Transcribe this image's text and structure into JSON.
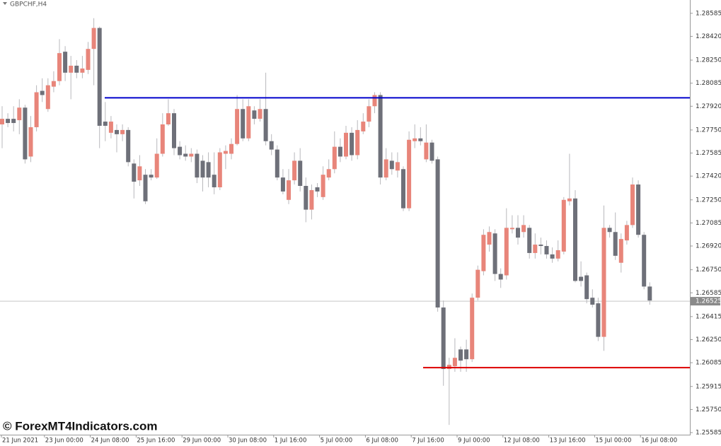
{
  "chart_data": {
    "type": "candlestick",
    "title": "GBPCHF,H4",
    "watermark": "© ForexMT4Indicators.com",
    "up_color": "#e8857a",
    "down_color": "#6e7079",
    "wick_color": "#b8b8bc",
    "ylim": [
      1.2557,
      1.2868
    ],
    "yticks": [
      1.28585,
      {
        "value": 1.2842,
        "label": "1.28420"
      },
      {
        "value": 1.2825,
        "label": "1.28250"
      },
      1.28085,
      {
        "value": 1.2792,
        "label": "1.27920"
      },
      {
        "value": 1.2775,
        "label": "1.27750"
      },
      1.27585,
      {
        "value": 1.2742,
        "label": "1.27420"
      },
      {
        "value": 1.2725,
        "label": "1.27250"
      },
      1.27085,
      {
        "value": 1.2692,
        "label": "1.26920"
      },
      {
        "value": 1.2675,
        "label": "1.26750"
      },
      1.26585,
      1.26415,
      {
        "value": 1.2625,
        "label": "1.26250"
      },
      1.26085,
      1.25915,
      {
        "value": 1.2575,
        "label": "1.25750"
      },
      1.25585
    ],
    "current_price": 1.26525,
    "levels": [
      {
        "value": 1.2798,
        "color": "#0000cc"
      },
      {
        "value": 1.2605,
        "color": "#dd0000"
      }
    ],
    "categories": [
      "21 Jun 2021",
      null,
      null,
      null,
      null,
      null,
      null,
      null,
      "23 Jun 00:00",
      null,
      null,
      null,
      null,
      null,
      null,
      null,
      "24 Jun 08:00",
      null,
      null,
      null,
      null,
      null,
      null,
      null,
      "25 Jun 16:00",
      null,
      null,
      null,
      null,
      null,
      null,
      null,
      "29 Jun 00:00",
      null,
      null,
      null,
      null,
      null,
      null,
      null,
      "30 Jun 08:00",
      null,
      null,
      null,
      null,
      null,
      null,
      null,
      "1 Jul 16:00",
      null,
      null,
      null,
      null,
      null,
      null,
      null,
      "5 Jul 00:00",
      null,
      null,
      null,
      null,
      null,
      null,
      null,
      "6 Jul 08:00",
      null,
      null,
      null,
      null,
      null,
      null,
      null,
      "7 Jul 16:00",
      null,
      null,
      null,
      null,
      null,
      null,
      null,
      "9 Jul 00:00",
      null,
      null,
      null,
      null,
      null,
      null,
      null,
      "12 Jul 08:00",
      null,
      null,
      null,
      null,
      null,
      null,
      null,
      "13 Jul 16:00",
      null,
      null,
      null,
      null,
      null,
      null,
      null,
      "15 Jul 00:00",
      null,
      null,
      null,
      null,
      null,
      null,
      null,
      "16 Jul 08:00",
      null
    ],
    "candles": [
      [
        1.2779,
        1.2792,
        1.2762,
        1.2783
      ],
      [
        1.2783,
        1.2787,
        1.2777,
        1.278
      ],
      [
        1.2783,
        1.2792,
        1.2774,
        1.278
      ],
      [
        1.2782,
        1.2797,
        1.2772,
        1.2791
      ],
      [
        1.2791,
        1.2793,
        1.2751,
        1.2754
      ],
      [
        1.2756,
        1.2785,
        1.2752,
        1.2777
      ],
      [
        1.2777,
        1.2807,
        1.2774,
        1.2802
      ],
      [
        1.2803,
        1.2812,
        1.2795,
        1.28
      ],
      [
        1.279,
        1.2812,
        1.2788,
        1.2807
      ],
      [
        1.2806,
        1.2817,
        1.2802,
        1.281
      ],
      [
        1.281,
        1.284,
        1.2807,
        1.283
      ],
      [
        1.2831,
        1.2835,
        1.281,
        1.2816
      ],
      [
        1.2816,
        1.2828,
        1.2797,
        1.2821
      ],
      [
        1.2821,
        1.2825,
        1.2812,
        1.2816
      ],
      [
        1.2816,
        1.2828,
        1.2812,
        1.2819
      ],
      [
        1.2818,
        1.2838,
        1.2815,
        1.2833
      ],
      [
        1.2833,
        1.2855,
        1.2807,
        1.2848
      ],
      [
        1.2848,
        1.2849,
        1.2762,
        1.2778
      ],
      [
        1.2781,
        1.2795,
        1.2767,
        1.2778
      ],
      [
        1.2773,
        1.2785,
        1.2769,
        1.2781
      ],
      [
        1.2775,
        1.2779,
        1.2759,
        1.2772
      ],
      [
        1.2772,
        1.2779,
        1.2767,
        1.2775
      ],
      [
        1.2775,
        1.2777,
        1.2749,
        1.2752
      ],
      [
        1.2751,
        1.2754,
        1.2726,
        1.2738
      ],
      [
        1.2739,
        1.2757,
        1.2735,
        1.2749
      ],
      [
        1.2743,
        1.2747,
        1.2722,
        1.2724
      ],
      [
        1.2743,
        1.2747,
        1.2739,
        1.2741
      ],
      [
        1.2741,
        1.2769,
        1.274,
        1.2758
      ],
      [
        1.2758,
        1.2787,
        1.2756,
        1.2779
      ],
      [
        1.2779,
        1.2797,
        1.2778,
        1.2787
      ],
      [
        1.2787,
        1.279,
        1.2757,
        1.2762
      ],
      [
        1.2763,
        1.2767,
        1.2754,
        1.2757
      ],
      [
        1.2758,
        1.2764,
        1.2753,
        1.2756
      ],
      [
        1.2756,
        1.2762,
        1.2752,
        1.2758
      ],
      [
        1.2758,
        1.2761,
        1.2737,
        1.2741
      ],
      [
        1.2753,
        1.2757,
        1.2731,
        1.2741
      ],
      [
        1.2752,
        1.2759,
        1.2734,
        1.2741
      ],
      [
        1.2743,
        1.2759,
        1.2729,
        1.2734
      ],
      [
        1.2734,
        1.2762,
        1.2732,
        1.2759
      ],
      [
        1.2758,
        1.2764,
        1.2747,
        1.276
      ],
      [
        1.2758,
        1.2769,
        1.2754,
        1.2765
      ],
      [
        1.2765,
        1.28,
        1.2764,
        1.279
      ],
      [
        1.279,
        1.2797,
        1.2767,
        1.2769
      ],
      [
        1.2769,
        1.2797,
        1.2767,
        1.2792
      ],
      [
        1.2789,
        1.2792,
        1.2779,
        1.2783
      ],
      [
        1.2783,
        1.2797,
        1.2781,
        1.279
      ],
      [
        1.279,
        1.2816,
        1.2764,
        1.2767
      ],
      [
        1.2767,
        1.2772,
        1.2757,
        1.2761
      ],
      [
        1.2761,
        1.2764,
        1.2739,
        1.2741
      ],
      [
        1.2741,
        1.2747,
        1.2729,
        1.2731
      ],
      [
        1.2725,
        1.2747,
        1.2722,
        1.2739
      ],
      [
        1.2739,
        1.2759,
        1.2736,
        1.2753
      ],
      [
        1.2753,
        1.2762,
        1.2731,
        1.2735
      ],
      [
        1.2735,
        1.2741,
        1.2709,
        1.2718
      ],
      [
        1.2718,
        1.2736,
        1.2711,
        1.2732
      ],
      [
        1.2734,
        1.2737,
        1.2727,
        1.2731
      ],
      [
        1.2727,
        1.2749,
        1.2725,
        1.2743
      ],
      [
        1.2741,
        1.2754,
        1.2739,
        1.2747
      ],
      [
        1.2747,
        1.2774,
        1.2744,
        1.2763
      ],
      [
        1.2763,
        1.2769,
        1.2752,
        1.2756
      ],
      [
        1.2756,
        1.2778,
        1.2754,
        1.2773
      ],
      [
        1.2773,
        1.2777,
        1.2753,
        1.2757
      ],
      [
        1.2757,
        1.2782,
        1.2754,
        1.2775
      ],
      [
        1.2774,
        1.2787,
        1.2772,
        1.2781
      ],
      [
        1.2781,
        1.2797,
        1.2777,
        1.2792
      ],
      [
        1.2792,
        1.2802,
        1.2787,
        1.28
      ],
      [
        1.28,
        1.2802,
        1.2736,
        1.2741
      ],
      [
        1.2741,
        1.2762,
        1.2739,
        1.2754
      ],
      [
        1.2753,
        1.2759,
        1.2743,
        1.2747
      ],
      [
        1.2746,
        1.2759,
        1.2741,
        1.2752
      ],
      [
        1.2747,
        1.2749,
        1.2717,
        1.2719
      ],
      [
        1.2719,
        1.2774,
        1.2717,
        1.2768
      ],
      [
        1.2767,
        1.2779,
        1.2762,
        1.2769
      ],
      [
        1.2769,
        1.2777,
        1.2764,
        1.2767
      ],
      [
        1.2754,
        1.2779,
        1.2752,
        1.2766
      ],
      [
        1.2766,
        1.2768,
        1.2751,
        1.2753
      ],
      [
        1.2754,
        1.2756,
        1.2645,
        1.2648
      ],
      [
        1.2648,
        1.2653,
        1.2592,
        1.2604
      ],
      [
        1.2604,
        1.2612,
        1.2564,
        1.2607
      ],
      [
        1.2606,
        1.2626,
        1.2602,
        1.2612
      ],
      [
        1.2618,
        1.262,
        1.2602,
        1.261
      ],
      [
        1.2618,
        1.2625,
        1.2602,
        1.2611
      ],
      [
        1.2611,
        1.2658,
        1.2609,
        1.2655
      ],
      [
        1.2655,
        1.2678,
        1.2653,
        1.2675
      ],
      [
        1.2674,
        1.2704,
        1.2671,
        1.27
      ],
      [
        1.2693,
        1.2706,
        1.2688,
        1.2702
      ],
      [
        1.2701,
        1.2704,
        1.2667,
        1.2672
      ],
      [
        1.2672,
        1.2676,
        1.2662,
        1.2668
      ],
      [
        1.2671,
        1.2719,
        1.2668,
        1.2705
      ],
      [
        1.2704,
        1.2714,
        1.2701,
        1.2705
      ],
      [
        1.2705,
        1.2714,
        1.2693,
        1.2698
      ],
      [
        1.2702,
        1.2714,
        1.2698,
        1.2707
      ],
      [
        1.2705,
        1.2707,
        1.2683,
        1.2687
      ],
      [
        1.2687,
        1.2701,
        1.2683,
        1.2693
      ],
      [
        1.2693,
        1.2698,
        1.2686,
        1.2692
      ],
      [
        1.2692,
        1.2696,
        1.2683,
        1.2686
      ],
      [
        1.2686,
        1.2691,
        1.268,
        1.2683
      ],
      [
        1.2683,
        1.2696,
        1.2681,
        1.2689
      ],
      [
        1.2688,
        1.2727,
        1.2686,
        1.2725
      ],
      [
        1.2724,
        1.2758,
        1.2721,
        1.2726
      ],
      [
        1.2726,
        1.2732,
        1.2666,
        1.2667
      ],
      [
        1.267,
        1.2681,
        1.2663,
        1.2667
      ],
      [
        1.2671,
        1.2673,
        1.2651,
        1.2654
      ],
      [
        1.2655,
        1.2661,
        1.2648,
        1.265
      ],
      [
        1.2651,
        1.2655,
        1.2624,
        1.2627
      ],
      [
        1.2627,
        1.2721,
        1.2617,
        1.2705
      ],
      [
        1.2705,
        1.2707,
        1.2698,
        1.2702
      ],
      [
        1.2702,
        1.2716,
        1.2682,
        1.2685
      ],
      [
        1.268,
        1.2701,
        1.2673,
        1.2697
      ],
      [
        1.2696,
        1.271,
        1.2693,
        1.2707
      ],
      [
        1.2707,
        1.2741,
        1.2705,
        1.2736
      ],
      [
        1.2736,
        1.2739,
        1.2698,
        1.27
      ],
      [
        1.27,
        1.2702,
        1.2661,
        1.2663
      ],
      [
        1.2663,
        1.2666,
        1.265,
        1.2653
      ]
    ]
  }
}
